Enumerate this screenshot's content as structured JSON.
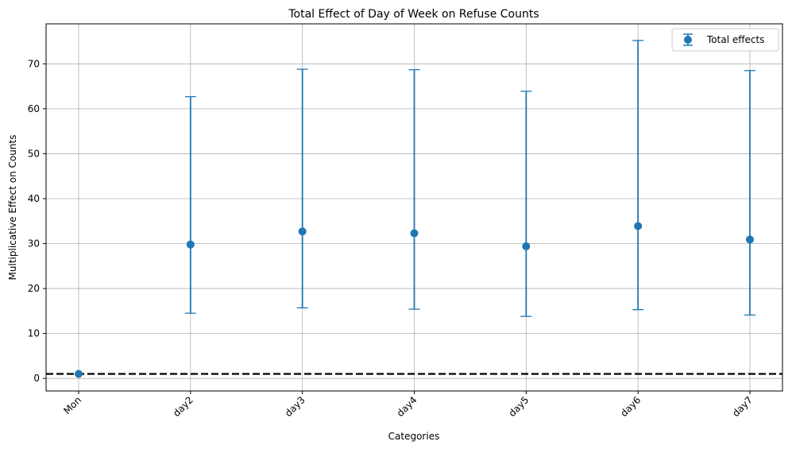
{
  "chart_data": {
    "type": "scatter",
    "title": "Total Effect of Day of Week on Refuse Counts",
    "xlabel": "Categories",
    "ylabel": "Multiplicative Effect on Counts",
    "categories": [
      "Mon",
      "day2",
      "day3",
      "day4",
      "day5",
      "day6",
      "day7"
    ],
    "series": [
      {
        "name": "Total effects",
        "color": "#1f77b4",
        "values": [
          1.0,
          29.8,
          32.7,
          32.3,
          29.4,
          33.9,
          30.9
        ],
        "lower": [
          1.0,
          14.5,
          15.7,
          15.4,
          13.8,
          15.3,
          14.1
        ],
        "upper": [
          1.0,
          62.7,
          68.8,
          68.7,
          63.9,
          75.2,
          68.5
        ]
      }
    ],
    "reference_line": {
      "y": 1.0,
      "style": "dashed",
      "color": "#000000"
    },
    "ylim": [
      -2.8,
      78.9
    ],
    "yticks": [
      0,
      10,
      20,
      30,
      40,
      50,
      60,
      70
    ],
    "grid": true,
    "legend_position": "top-right",
    "x_tick_rotation": 45
  }
}
